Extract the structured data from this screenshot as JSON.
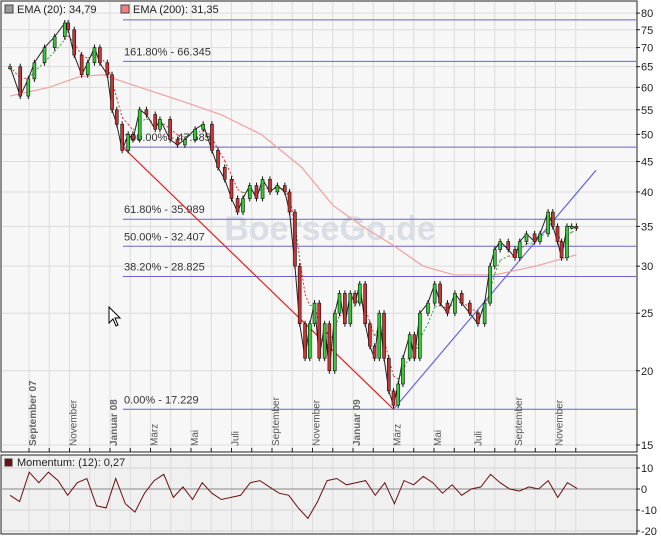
{
  "chart_data": [
    {
      "type": "candlestick",
      "y_scale": "log",
      "ylim": [
        15,
        82
      ],
      "y_ticks": [
        80,
        75,
        70,
        65,
        60,
        55,
        50,
        45,
        40,
        35,
        30,
        25,
        20,
        15
      ],
      "grid": true,
      "watermark": "BoerseGo.de",
      "legend": [
        {
          "label": "EMA (20): 34,79",
          "color": "#9a9a9a"
        },
        {
          "label": "EMA (200): 31,35",
          "color": "#f08080"
        }
      ],
      "x_labels": [
        {
          "label": "September 07",
          "date": "2007-09-01",
          "bold": true
        },
        {
          "label": "November",
          "date": "2007-11-01",
          "bold": false
        },
        {
          "label": "Januar 08",
          "date": "2008-01-01",
          "bold": true
        },
        {
          "label": "März",
          "date": "2008-03-01",
          "bold": false
        },
        {
          "label": "Mai",
          "date": "2008-05-01",
          "bold": false
        },
        {
          "label": "Juli",
          "date": "2008-07-01",
          "bold": false
        },
        {
          "label": "September",
          "date": "2008-09-01",
          "bold": false
        },
        {
          "label": "November",
          "date": "2008-11-01",
          "bold": false
        },
        {
          "label": "Januar 09",
          "date": "2009-01-01",
          "bold": true
        },
        {
          "label": "März",
          "date": "2009-03-01",
          "bold": false
        },
        {
          "label": "Mai",
          "date": "2009-05-01",
          "bold": false
        },
        {
          "label": "Juli",
          "date": "2009-07-01",
          "bold": false
        },
        {
          "label": "September",
          "date": "2009-09-01",
          "bold": false
        },
        {
          "label": "November",
          "date": "2009-11-01",
          "bold": false
        }
      ],
      "fibonacci": [
        {
          "label": "",
          "value": 77.94
        },
        {
          "label": "161.80% - 66.345",
          "value": 66.345
        },
        {
          "label": "100.00% - 47.585",
          "value": 47.585
        },
        {
          "label": "61.80% - 35.989",
          "value": 35.989
        },
        {
          "label": "50.00% - 32.407",
          "value": 32.407
        },
        {
          "label": "38.20% - 28.825",
          "value": 28.825
        },
        {
          "label": "0.00% - 17.229",
          "value": 17.229
        }
      ],
      "trendlines": [
        {
          "color": "#e02020",
          "from": [
            "2008-01-20",
            47.585
          ],
          "to": [
            "2009-03-01",
            17.229
          ]
        },
        {
          "color": "#6666dd",
          "from": [
            "2009-03-01",
            17.229
          ],
          "to": [
            "2009-12-31",
            43.5
          ]
        }
      ],
      "dates": [
        "2007-08-03",
        "2007-08-18",
        "2007-08-30",
        "2007-09-09",
        "2007-09-24",
        "2007-10-09",
        "2007-10-24",
        "2007-10-29",
        "2007-11-08",
        "2007-11-19",
        "2007-11-28",
        "2007-12-08",
        "2007-12-16",
        "2007-12-27",
        "2008-01-04",
        "2008-01-11",
        "2008-01-19",
        "2008-01-28",
        "2008-02-05",
        "2008-02-15",
        "2008-02-25",
        "2008-03-08",
        "2008-03-15",
        "2008-03-30",
        "2008-04-11",
        "2008-04-22",
        "2008-05-07",
        "2008-05-19",
        "2008-06-02",
        "2008-06-11",
        "2008-06-21",
        "2008-07-01",
        "2008-07-10",
        "2008-07-18",
        "2008-07-28",
        "2008-08-08",
        "2008-08-17",
        "2008-08-28",
        "2008-09-09",
        "2008-09-20",
        "2008-09-27",
        "2008-10-05",
        "2008-10-12",
        "2008-10-20",
        "2008-10-27",
        "2008-11-04",
        "2008-11-11",
        "2008-11-19",
        "2008-11-26",
        "2008-12-04",
        "2008-12-11",
        "2008-12-19",
        "2008-12-27",
        "2009-01-04",
        "2009-01-11",
        "2009-01-19",
        "2009-01-26",
        "2009-02-03",
        "2009-02-10",
        "2009-02-17",
        "2009-02-24",
        "2009-03-01",
        "2009-03-08",
        "2009-03-15",
        "2009-03-25",
        "2009-04-02",
        "2009-04-10",
        "2009-04-22",
        "2009-05-02",
        "2009-05-10",
        "2009-05-21",
        "2009-06-02",
        "2009-06-12",
        "2009-06-24",
        "2009-07-06",
        "2009-07-16",
        "2009-07-24",
        "2009-08-01",
        "2009-08-09",
        "2009-08-21",
        "2009-09-01",
        "2009-09-08",
        "2009-09-18",
        "2009-09-30",
        "2009-10-08",
        "2009-10-20",
        "2009-10-27",
        "2009-11-04",
        "2009-11-10",
        "2009-11-18",
        "2009-11-25",
        "2009-12-02"
      ],
      "close": [
        65,
        58,
        62,
        66,
        70,
        73,
        77,
        75,
        68,
        63,
        66,
        70,
        66,
        63,
        55,
        52,
        47,
        50,
        49,
        55,
        54,
        51,
        53,
        49,
        48,
        49,
        51,
        52,
        47,
        44,
        42,
        39,
        37,
        39,
        41,
        39,
        42,
        40,
        41,
        40,
        37,
        30,
        24,
        21,
        24,
        26,
        21,
        24,
        20,
        25,
        27,
        24,
        27,
        26,
        28,
        24,
        22,
        21,
        25,
        21,
        18.5,
        17.5,
        19,
        21,
        23,
        21,
        25,
        26,
        28,
        26,
        25,
        27,
        26,
        25,
        24,
        26,
        30,
        32,
        33,
        32,
        31,
        33,
        34,
        33,
        34,
        37,
        35,
        33,
        31,
        35,
        35,
        34.8
      ],
      "ema200": {
        "dates": [
          "2007-08-03",
          "2007-10-01",
          "2007-11-15",
          "2007-12-20",
          "2008-02-15",
          "2008-04-15",
          "2008-06-15",
          "2008-08-15",
          "2008-10-15",
          "2008-12-01",
          "2009-01-15",
          "2009-03-01",
          "2009-04-15",
          "2009-06-01",
          "2009-08-01",
          "2009-10-01",
          "2009-12-02"
        ],
        "values": [
          58,
          60,
          62.5,
          63,
          60,
          57,
          54,
          50,
          44,
          38,
          35,
          32.5,
          30,
          29,
          29,
          30,
          31.35
        ]
      }
    },
    {
      "type": "line",
      "title": "Momentum: (12): 0,27",
      "color": "#6b1010",
      "ylim": [
        -21,
        12
      ],
      "y_ticks": [
        10,
        0,
        -10,
        -20
      ],
      "values": [
        -3,
        -6,
        8,
        3,
        8,
        4,
        -3,
        3,
        5,
        -8,
        -9,
        5,
        -7,
        -11,
        -2,
        4,
        7,
        -4,
        1,
        -5,
        3,
        -2,
        -5,
        -4,
        -3,
        3,
        4,
        1,
        -2,
        -3,
        -9,
        -14,
        -6,
        4,
        5,
        2,
        3,
        4,
        -3,
        3,
        -7,
        4,
        2,
        6,
        3,
        -2,
        2,
        -3,
        0,
        1,
        7,
        3,
        0,
        -1,
        1,
        0,
        4,
        -4,
        3,
        0.27
      ]
    }
  ]
}
